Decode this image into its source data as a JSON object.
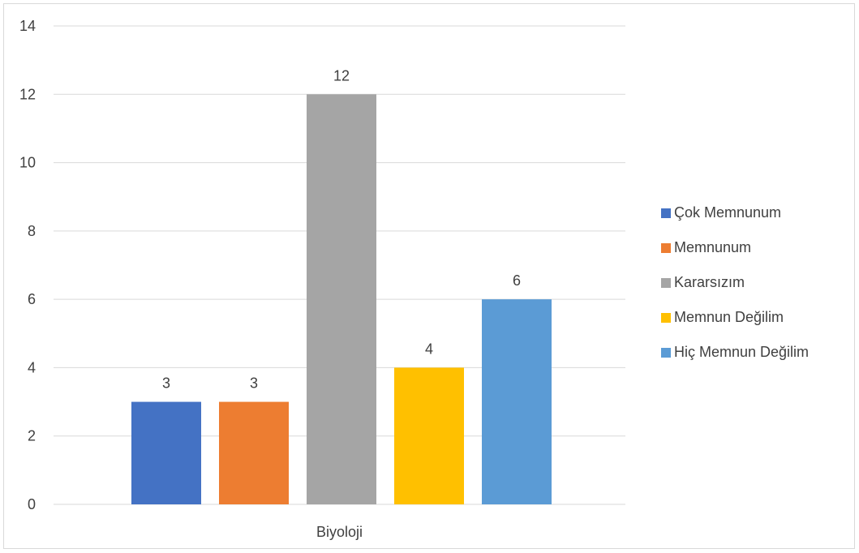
{
  "chart_data": {
    "type": "bar",
    "categories": [
      "Biyoloji"
    ],
    "series": [
      {
        "name": "Çok Memnunum",
        "values": [
          3
        ],
        "color": "#4472C4"
      },
      {
        "name": "Memnunum",
        "values": [
          3
        ],
        "color": "#ED7D31"
      },
      {
        "name": "Kararsızım",
        "values": [
          12
        ],
        "color": "#A5A5A5"
      },
      {
        "name": "Memnun Değilim",
        "values": [
          4
        ],
        "color": "#FFC000"
      },
      {
        "name": "Hiç Memnun Değilim",
        "values": [
          6
        ],
        "color": "#5B9BD5"
      }
    ],
    "title": "",
    "xlabel": "",
    "ylabel": "",
    "ylim": [
      0,
      14
    ],
    "yticks": [
      "0",
      "2",
      "4",
      "6",
      "8",
      "10",
      "12",
      "14"
    ],
    "data_labels": [
      "3",
      "3",
      "12",
      "4",
      "6"
    ],
    "grid": true,
    "legend_position": "right"
  }
}
